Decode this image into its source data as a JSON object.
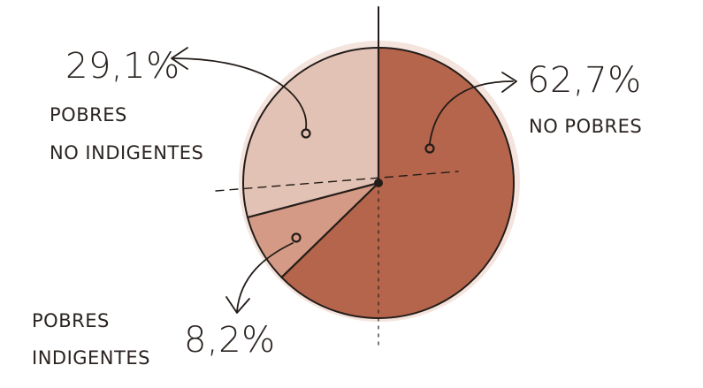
{
  "chart_data": {
    "type": "pie",
    "slices": [
      {
        "label_lines": [
          "NO POBRES"
        ],
        "value": 62.7,
        "value_text": "62,7%",
        "color": "#b5654c"
      },
      {
        "label_lines": [
          "POBRES",
          "INDIGENTES"
        ],
        "value": 8.2,
        "value_text": "8,2%",
        "color": "#d49a85"
      },
      {
        "label_lines": [
          "POBRES",
          "NO INDIGENTES"
        ],
        "value": 29.1,
        "value_text": "29,1%",
        "color": "#e3c2b6"
      }
    ]
  }
}
